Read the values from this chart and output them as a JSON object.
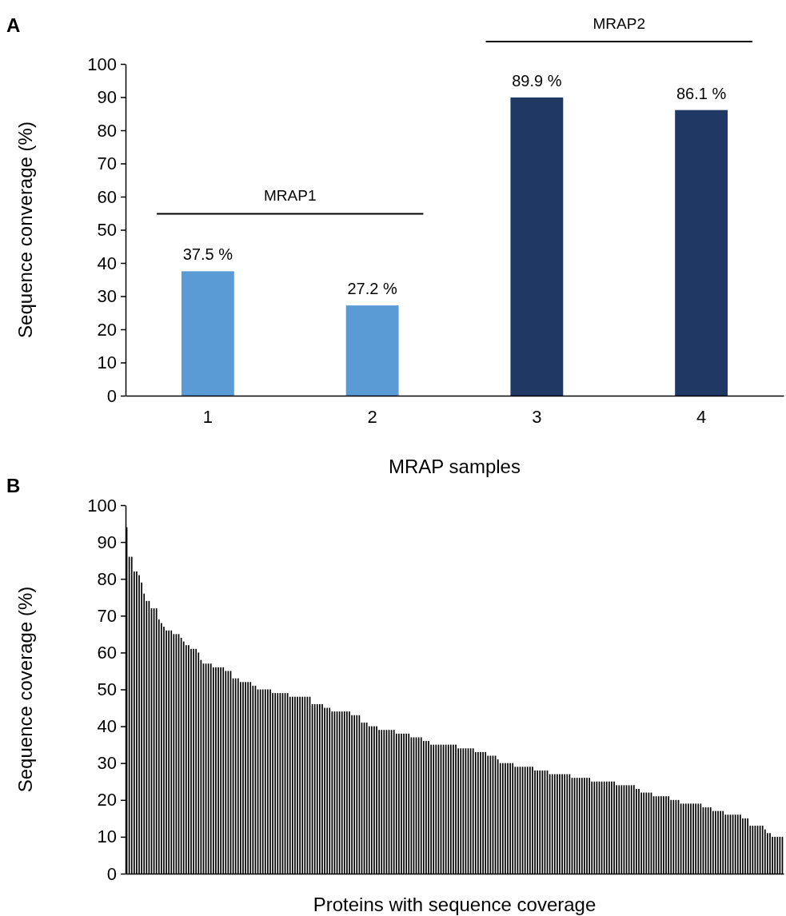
{
  "chart_data": [
    {
      "type": "bar",
      "title": "A",
      "xlabel": "MRAP samples",
      "ylabel": "Sequence converage (%)",
      "categories": [
        "1",
        "2",
        "3",
        "4"
      ],
      "values": [
        37.5,
        27.2,
        89.9,
        86.1
      ],
      "colors": [
        "#5b9bd5",
        "#5b9bd5",
        "#203864",
        "#203864"
      ],
      "value_labels": [
        "37.5 %",
        "27.2 %",
        "89.9 %",
        "86.1 %"
      ],
      "ylim": [
        0,
        100
      ],
      "yticks": [
        0,
        10,
        20,
        30,
        40,
        50,
        60,
        70,
        80,
        90,
        100
      ],
      "annotations": [
        "MRAP1",
        "MRAP2"
      ]
    },
    {
      "type": "bar",
      "title": "B",
      "xlabel": "Proteins with sequence coverage",
      "ylabel": "Sequence coverage (%)",
      "tick_labels": "y",
      "color": "#000000",
      "ylim": [
        0,
        100
      ],
      "yticks": [
        0,
        10,
        20,
        30,
        40,
        50,
        60,
        70,
        80,
        90,
        100
      ],
      "categories": [
        null,
        null,
        null,
        null,
        null,
        null,
        null,
        null,
        null,
        null,
        null,
        null,
        null,
        null,
        null,
        null,
        null,
        null,
        null,
        null,
        null,
        null,
        null,
        null,
        null,
        null,
        null,
        null,
        null,
        null,
        null,
        null,
        null,
        null,
        null,
        null,
        null,
        null,
        null,
        null,
        null,
        null,
        null,
        null,
        null,
        null,
        null,
        null,
        null,
        null,
        null,
        null,
        null,
        null,
        null,
        null,
        null,
        null,
        null,
        null,
        null,
        null,
        null,
        null,
        null,
        null,
        null,
        null,
        null,
        null,
        null,
        null,
        null,
        null,
        null,
        null,
        null,
        null,
        null,
        null,
        null,
        null,
        null,
        null,
        null,
        null,
        null,
        null,
        null,
        null,
        null,
        null,
        null,
        null,
        null,
        null,
        null,
        null,
        null,
        null,
        null,
        null,
        null,
        null,
        null,
        null,
        null,
        null,
        null,
        null,
        null,
        null,
        null,
        null,
        null,
        null,
        null,
        null,
        null,
        null,
        null,
        null,
        null,
        null,
        null,
        null,
        null,
        null,
        null,
        null,
        null,
        null,
        null,
        null,
        null,
        null,
        null,
        null,
        null,
        null,
        null,
        null,
        null,
        null,
        null,
        null,
        null,
        null,
        null,
        null,
        null,
        null,
        null,
        null,
        null,
        null,
        null,
        null,
        null,
        null,
        null,
        null,
        null,
        null,
        null,
        null,
        null,
        null,
        null,
        null,
        null,
        null,
        null,
        null,
        null,
        null,
        null,
        null,
        null,
        null,
        null,
        null,
        null,
        null,
        null,
        null,
        null,
        null,
        null,
        null,
        null,
        null,
        null,
        null,
        null,
        null,
        null,
        null,
        null,
        null,
        null,
        null,
        null,
        null,
        null,
        null,
        null,
        null,
        null,
        null,
        null,
        null,
        null,
        null,
        null,
        null,
        null,
        null,
        null,
        null,
        null,
        null,
        null,
        null,
        null,
        null,
        null,
        null,
        null,
        null,
        null,
        null,
        null,
        null,
        null,
        null,
        null,
        null,
        null,
        null,
        null,
        null,
        null,
        null,
        null,
        null,
        null,
        null,
        null,
        null,
        null,
        null,
        null,
        null,
        null,
        null,
        null,
        null,
        null,
        null,
        null,
        null,
        null,
        null,
        null,
        null
      ],
      "values": [
        94,
        86,
        86,
        82,
        82,
        81,
        79,
        76,
        74,
        74,
        72,
        72,
        72,
        69,
        68,
        67,
        66,
        66,
        66,
        65,
        65,
        65,
        64,
        63,
        62,
        62,
        61,
        61,
        61,
        60,
        58,
        57,
        57,
        57,
        57,
        56,
        56,
        56,
        56,
        56,
        55,
        55,
        55,
        53,
        53,
        53,
        52,
        52,
        52,
        52,
        52,
        51,
        51,
        50,
        50,
        50,
        50,
        50,
        50,
        49,
        49,
        49,
        49,
        49,
        49,
        49,
        48,
        48,
        48,
        48,
        48,
        48,
        48,
        48,
        48,
        46,
        46,
        46,
        46,
        46,
        45,
        45,
        45,
        44,
        44,
        44,
        44,
        44,
        44,
        44,
        44,
        43,
        43,
        43,
        43,
        41,
        41,
        41,
        40,
        40,
        40,
        40,
        39,
        39,
        39,
        39,
        39,
        39,
        39,
        38,
        38,
        38,
        38,
        38,
        38,
        37,
        37,
        37,
        37,
        37,
        36,
        36,
        36,
        35,
        35,
        35,
        35,
        35,
        35,
        35,
        35,
        35,
        35,
        35,
        34,
        34,
        34,
        34,
        34,
        34,
        34,
        33,
        33,
        33,
        33,
        33,
        32,
        32,
        32,
        32,
        31,
        30,
        30,
        30,
        30,
        30,
        30,
        29,
        29,
        29,
        29,
        29,
        29,
        29,
        29,
        28,
        28,
        28,
        28,
        28,
        28,
        27,
        27,
        27,
        27,
        27,
        27,
        27,
        27,
        27,
        26,
        26,
        26,
        26,
        26,
        26,
        26,
        26,
        25,
        25,
        25,
        25,
        25,
        25,
        25,
        25,
        25,
        25,
        24,
        24,
        24,
        24,
        24,
        24,
        24,
        24,
        23,
        23,
        22,
        22,
        22,
        22,
        22,
        21,
        21,
        21,
        21,
        21,
        21,
        21,
        20,
        20,
        20,
        20,
        19,
        19,
        19,
        19,
        19,
        19,
        19,
        19,
        19,
        18,
        18,
        18,
        18,
        17,
        17,
        17,
        17,
        17,
        16,
        16,
        16,
        16,
        16,
        16,
        16,
        15,
        15,
        15,
        13,
        13,
        13,
        13,
        13,
        13,
        12,
        11,
        11,
        10,
        10,
        10,
        10,
        10
      ]
    }
  ]
}
